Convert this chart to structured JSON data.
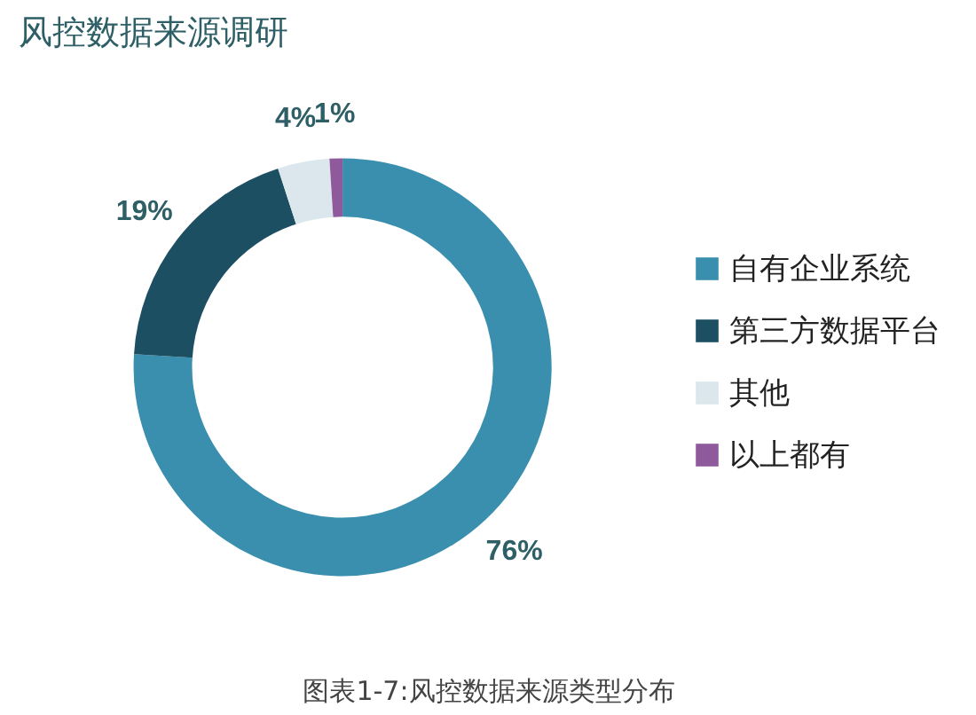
{
  "chart_data": {
    "type": "donut",
    "title": "风控数据来源调研",
    "categories": [
      "自有企业系统",
      "第三方数据平台",
      "其他",
      "以上都有"
    ],
    "values": [
      76,
      19,
      4,
      1
    ],
    "colors": [
      "#3a8fae",
      "#1d4f63",
      "#dbe7ec",
      "#8e5a9c"
    ],
    "value_labels": [
      "76%",
      "19%",
      "4%",
      "1%"
    ],
    "legend": "right",
    "annotations": [
      "图表1-7:风控数据来源类型分布"
    ]
  }
}
